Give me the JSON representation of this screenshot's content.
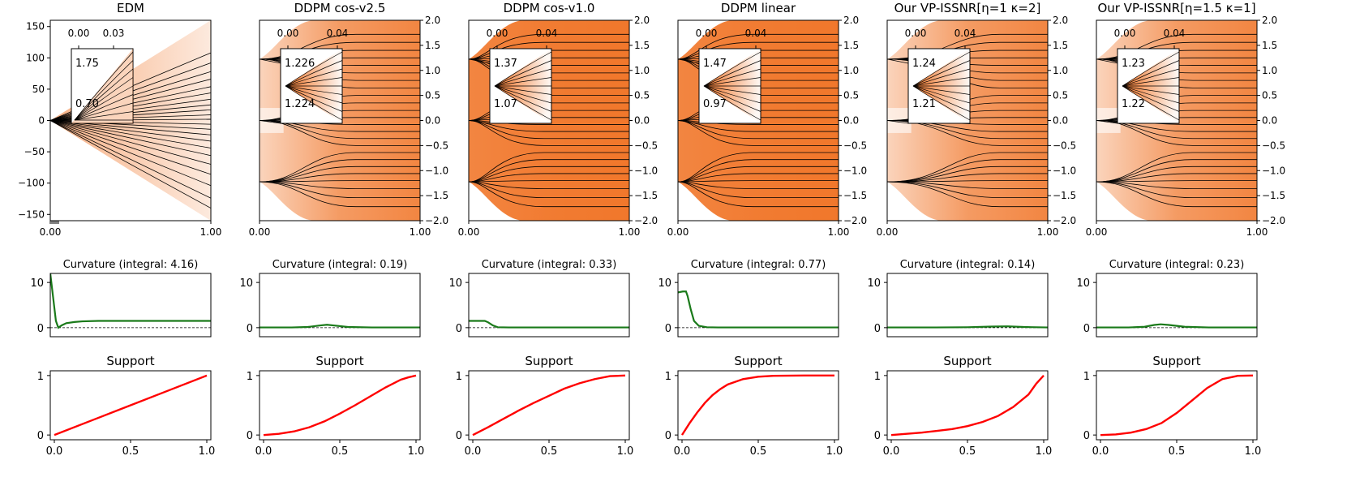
{
  "figure": {
    "description_free": true
  },
  "chart_data": [
    {
      "type": "line",
      "panel": "trajectory",
      "title": "EDM",
      "xlim": [
        0,
        1
      ],
      "ylim": [
        -160,
        160
      ],
      "xticks": [
        "0.00",
        "1.00"
      ],
      "yticks": [
        "150",
        "100",
        "50",
        "0",
        "−50",
        "−100",
        "−150"
      ],
      "ytick_values": [
        150,
        100,
        50,
        0,
        -50,
        -100,
        -150
      ],
      "targets": [
        0
      ],
      "end_values": [
        108,
        92,
        78,
        66,
        54,
        44,
        34,
        25,
        17,
        9,
        2,
        -6,
        -14,
        -23,
        -33,
        -44,
        -56,
        -70,
        -86,
        -104,
        -124,
        -140
      ],
      "inset": {
        "xticks": [
          "0.00",
          "0.03"
        ],
        "yticks": [
          "1.75",
          "0.70"
        ]
      }
    },
    {
      "type": "line",
      "panel": "trajectory",
      "title": "DDPM cos-v2.5",
      "xlim": [
        0,
        1
      ],
      "ylim": [
        -2.0,
        2.0
      ],
      "xticks": [
        "0.00",
        "1.00"
      ],
      "yticks": [
        "2.0",
        "1.5",
        "1.0",
        "0.5",
        "0.0",
        "−0.5",
        "−1.0",
        "−1.5",
        "−2.0"
      ],
      "ytick_values": [
        2.0,
        1.5,
        1.0,
        0.5,
        0.0,
        -0.5,
        -1.0,
        -1.5,
        -2.0
      ],
      "targets": [
        1.225,
        0.0,
        -1.225
      ],
      "end_values": [
        1.72,
        1.56,
        1.4,
        1.25,
        1.1,
        0.95,
        0.8,
        0.65,
        0.5,
        0.35,
        0.2,
        0.06,
        -0.08,
        -0.22,
        -0.36,
        -0.5,
        -0.64,
        -0.78,
        -0.92,
        -1.06,
        -1.2,
        -1.36,
        -1.54,
        -1.72
      ],
      "inset": {
        "xticks": [
          "0.00",
          "0.04"
        ],
        "yticks": [
          "1.226",
          "1.224"
        ]
      }
    },
    {
      "type": "line",
      "panel": "trajectory",
      "title": "DDPM cos-v1.0",
      "xlim": [
        0,
        1
      ],
      "ylim": [
        -2.0,
        2.0
      ],
      "xticks": [
        "0.00",
        "1.00"
      ],
      "yticks": [
        "2.0",
        "1.5",
        "1.0",
        "0.5",
        "0.0",
        "−0.5",
        "−1.0",
        "−1.5",
        "−2.0"
      ],
      "ytick_values": [
        2.0,
        1.5,
        1.0,
        0.5,
        0.0,
        -0.5,
        -1.0,
        -1.5,
        -2.0
      ],
      "targets": [
        1.225,
        0.0,
        -1.225
      ],
      "end_values": [
        1.72,
        1.56,
        1.4,
        1.25,
        1.1,
        0.95,
        0.8,
        0.65,
        0.5,
        0.35,
        0.2,
        0.06,
        -0.08,
        -0.22,
        -0.36,
        -0.5,
        -0.64,
        -0.78,
        -0.92,
        -1.06,
        -1.2,
        -1.36,
        -1.54,
        -1.72
      ],
      "inset": {
        "xticks": [
          "0.00",
          "0.04"
        ],
        "yticks": [
          "1.37",
          "1.07"
        ]
      }
    },
    {
      "type": "line",
      "panel": "trajectory",
      "title": "DDPM linear",
      "xlim": [
        0,
        1
      ],
      "ylim": [
        -2.0,
        2.0
      ],
      "xticks": [
        "0.00",
        "1.00"
      ],
      "yticks": [
        "2.0",
        "1.5",
        "1.0",
        "0.5",
        "0.0",
        "−0.5",
        "−1.0",
        "−1.5",
        "−2.0"
      ],
      "ytick_values": [
        2.0,
        1.5,
        1.0,
        0.5,
        0.0,
        -0.5,
        -1.0,
        -1.5,
        -2.0
      ],
      "targets": [
        1.225,
        0.0,
        -1.225
      ],
      "end_values": [
        1.72,
        1.56,
        1.4,
        1.25,
        1.1,
        0.95,
        0.8,
        0.65,
        0.5,
        0.35,
        0.2,
        0.06,
        -0.08,
        -0.22,
        -0.36,
        -0.5,
        -0.64,
        -0.78,
        -0.92,
        -1.06,
        -1.2,
        -1.36,
        -1.54,
        -1.72
      ],
      "inset": {
        "xticks": [
          "0.00",
          "0.04"
        ],
        "yticks": [
          "1.47",
          "0.97"
        ]
      }
    },
    {
      "type": "line",
      "panel": "trajectory",
      "title": "Our VP-ISSNR[η=1 κ=2]",
      "xlim": [
        0,
        1
      ],
      "ylim": [
        -2.0,
        2.0
      ],
      "xticks": [
        "0.00",
        "1.00"
      ],
      "yticks": [
        "2.0",
        "1.5",
        "1.0",
        "0.5",
        "0.0",
        "−0.5",
        "−1.0",
        "−1.5",
        "−2.0"
      ],
      "ytick_values": [
        2.0,
        1.5,
        1.0,
        0.5,
        0.0,
        -0.5,
        -1.0,
        -1.5,
        -2.0
      ],
      "targets": [
        1.225,
        0.0,
        -1.225
      ],
      "end_values": [
        1.72,
        1.56,
        1.4,
        1.25,
        1.1,
        0.95,
        0.8,
        0.65,
        0.5,
        0.35,
        0.2,
        0.06,
        -0.08,
        -0.22,
        -0.36,
        -0.5,
        -0.64,
        -0.78,
        -0.92,
        -1.06,
        -1.2,
        -1.36,
        -1.54,
        -1.72
      ],
      "inset": {
        "xticks": [
          "0.00",
          "0.04"
        ],
        "yticks": [
          "1.24",
          "1.21"
        ]
      }
    },
    {
      "type": "line",
      "panel": "trajectory",
      "title": "Our VP-ISSNR[η=1.5 κ=1]",
      "xlim": [
        0,
        1
      ],
      "ylim": [
        -2.0,
        2.0
      ],
      "xticks": [
        "0.00",
        "1.00"
      ],
      "yticks": [
        "2.0",
        "1.5",
        "1.0",
        "0.5",
        "0.0",
        "−0.5",
        "−1.0",
        "−1.5",
        "−2.0"
      ],
      "ytick_values": [
        2.0,
        1.5,
        1.0,
        0.5,
        0.0,
        -0.5,
        -1.0,
        -1.5,
        -2.0
      ],
      "targets": [
        1.225,
        0.0,
        -1.225
      ],
      "end_values": [
        1.72,
        1.56,
        1.4,
        1.25,
        1.1,
        0.95,
        0.8,
        0.65,
        0.5,
        0.35,
        0.2,
        0.06,
        -0.08,
        -0.22,
        -0.36,
        -0.5,
        -0.64,
        -0.78,
        -0.92,
        -1.06,
        -1.2,
        -1.36,
        -1.54,
        -1.72
      ],
      "inset": {
        "xticks": [
          "0.00",
          "0.04"
        ],
        "yticks": [
          "1.23",
          "1.22"
        ]
      }
    },
    {
      "type": "line",
      "panel": "curvature",
      "title": "Curvature (integral: 4.16)",
      "ylim": [
        -2,
        12
      ],
      "yticks": [
        "10",
        "0"
      ],
      "ytick_values": [
        10,
        0
      ],
      "x": [
        0,
        0.02,
        0.035,
        0.05,
        0.07,
        0.1,
        0.15,
        0.2,
        0.3,
        0.5,
        0.75,
        1.0
      ],
      "values": [
        12,
        6,
        1.5,
        0,
        0.5,
        1.0,
        1.25,
        1.4,
        1.5,
        1.5,
        1.5,
        1.5
      ]
    },
    {
      "type": "line",
      "panel": "curvature",
      "title": "Curvature (integral: 0.19)",
      "ylim": [
        -2,
        12
      ],
      "yticks": [
        "10",
        "0"
      ],
      "ytick_values": [
        10,
        0
      ],
      "x": [
        0,
        0.2,
        0.3,
        0.38,
        0.42,
        0.46,
        0.55,
        0.7,
        1.0
      ],
      "values": [
        0.05,
        0.05,
        0.15,
        0.5,
        0.65,
        0.5,
        0.15,
        0.05,
        0.05
      ]
    },
    {
      "type": "line",
      "panel": "curvature",
      "title": "Curvature (integral: 0.33)",
      "ylim": [
        -2,
        12
      ],
      "yticks": [
        "10",
        "0"
      ],
      "ytick_values": [
        10,
        0
      ],
      "x": [
        0,
        0.05,
        0.1,
        0.12,
        0.15,
        0.18,
        0.25,
        1.0
      ],
      "values": [
        1.5,
        1.5,
        1.5,
        1.2,
        0.5,
        0.1,
        0.05,
        0.05
      ]
    },
    {
      "type": "line",
      "panel": "curvature",
      "title": "Curvature (integral: 0.77)",
      "ylim": [
        -2,
        12
      ],
      "yticks": [
        "10",
        "0"
      ],
      "ytick_values": [
        10,
        0
      ],
      "x": [
        0,
        0.03,
        0.05,
        0.06,
        0.08,
        0.1,
        0.13,
        0.18,
        0.25,
        1.0
      ],
      "values": [
        7.8,
        8.0,
        8.0,
        7.0,
        4.0,
        1.5,
        0.4,
        0.1,
        0.05,
        0.05
      ]
    },
    {
      "type": "line",
      "panel": "curvature",
      "title": "Curvature (integral: 0.14)",
      "ylim": [
        -2,
        12
      ],
      "yticks": [
        "10",
        "0"
      ],
      "ytick_values": [
        10,
        0
      ],
      "x": [
        0,
        0.3,
        0.5,
        0.65,
        0.75,
        0.85,
        1.0
      ],
      "values": [
        0.05,
        0.05,
        0.1,
        0.25,
        0.3,
        0.15,
        0.05
      ]
    },
    {
      "type": "line",
      "panel": "curvature",
      "title": "Curvature (integral: 0.23)",
      "ylim": [
        -2,
        12
      ],
      "yticks": [
        "10",
        "0"
      ],
      "ytick_values": [
        10,
        0
      ],
      "x": [
        0,
        0.2,
        0.3,
        0.36,
        0.4,
        0.45,
        0.55,
        0.7,
        1.0
      ],
      "values": [
        0.05,
        0.05,
        0.2,
        0.6,
        0.75,
        0.6,
        0.2,
        0.05,
        0.05
      ]
    },
    {
      "type": "line",
      "panel": "support",
      "title": "Support",
      "ylim": [
        -0.08,
        1.08
      ],
      "yticks": [
        "1",
        "0"
      ],
      "ytick_values": [
        1,
        0
      ],
      "xticks": [
        "0.0",
        "0.5",
        "1.0"
      ],
      "x": [
        0,
        0.25,
        0.5,
        0.75,
        1.0
      ],
      "values": [
        0,
        0.25,
        0.5,
        0.75,
        1.0
      ]
    },
    {
      "type": "line",
      "panel": "support",
      "title": "Support",
      "ylim": [
        -0.08,
        1.08
      ],
      "yticks": [
        "1",
        "0"
      ],
      "ytick_values": [
        1,
        0
      ],
      "xticks": [
        "0.0",
        "0.5",
        "1.0"
      ],
      "x": [
        0,
        0.1,
        0.2,
        0.3,
        0.4,
        0.5,
        0.6,
        0.7,
        0.8,
        0.9,
        0.95,
        1.0
      ],
      "values": [
        0,
        0.02,
        0.06,
        0.13,
        0.23,
        0.36,
        0.5,
        0.65,
        0.8,
        0.93,
        0.97,
        1.0
      ]
    },
    {
      "type": "line",
      "panel": "support",
      "title": "Support",
      "ylim": [
        -0.08,
        1.08
      ],
      "yticks": [
        "1",
        "0"
      ],
      "ytick_values": [
        1,
        0
      ],
      "xticks": [
        "0.0",
        "0.5",
        "1.0"
      ],
      "x": [
        0,
        0.1,
        0.2,
        0.3,
        0.4,
        0.5,
        0.6,
        0.7,
        0.8,
        0.9,
        1.0
      ],
      "values": [
        0,
        0.13,
        0.27,
        0.41,
        0.54,
        0.66,
        0.78,
        0.87,
        0.94,
        0.99,
        1.0
      ]
    },
    {
      "type": "line",
      "panel": "support",
      "title": "Support",
      "ylim": [
        -0.08,
        1.08
      ],
      "yticks": [
        "1",
        "0"
      ],
      "ytick_values": [
        1,
        0
      ],
      "xticks": [
        "0.0",
        "0.5",
        "1.0"
      ],
      "x": [
        0,
        0.05,
        0.1,
        0.15,
        0.2,
        0.25,
        0.3,
        0.4,
        0.5,
        0.6,
        0.8,
        1.0
      ],
      "values": [
        0,
        0.2,
        0.38,
        0.54,
        0.67,
        0.77,
        0.85,
        0.94,
        0.98,
        0.995,
        1.0,
        1.0
      ]
    },
    {
      "type": "line",
      "panel": "support",
      "title": "Support",
      "ylim": [
        -0.08,
        1.08
      ],
      "yticks": [
        "1",
        "0"
      ],
      "ytick_values": [
        1,
        0
      ],
      "xticks": [
        "0.0",
        "0.5",
        "1.0"
      ],
      "x": [
        0,
        0.1,
        0.2,
        0.3,
        0.4,
        0.5,
        0.6,
        0.7,
        0.8,
        0.9,
        0.95,
        1.0
      ],
      "values": [
        0,
        0.02,
        0.04,
        0.07,
        0.1,
        0.15,
        0.22,
        0.32,
        0.47,
        0.68,
        0.86,
        1.0
      ]
    },
    {
      "type": "line",
      "panel": "support",
      "title": "Support",
      "ylim": [
        -0.08,
        1.08
      ],
      "yticks": [
        "1",
        "0"
      ],
      "ytick_values": [
        1,
        0
      ],
      "xticks": [
        "0.0",
        "0.5",
        "1.0"
      ],
      "x": [
        0,
        0.1,
        0.2,
        0.3,
        0.4,
        0.5,
        0.6,
        0.7,
        0.8,
        0.9,
        1.0
      ],
      "values": [
        0,
        0.01,
        0.04,
        0.1,
        0.2,
        0.37,
        0.58,
        0.79,
        0.94,
        0.995,
        1.0
      ]
    }
  ],
  "colors": {
    "trajectory_line": "#000000",
    "heat_dark": "#f07020",
    "heat_light": "#ffffff",
    "curvature_line": "#1a7a1a",
    "support_line": "#ff0000",
    "axis": "#000000"
  }
}
